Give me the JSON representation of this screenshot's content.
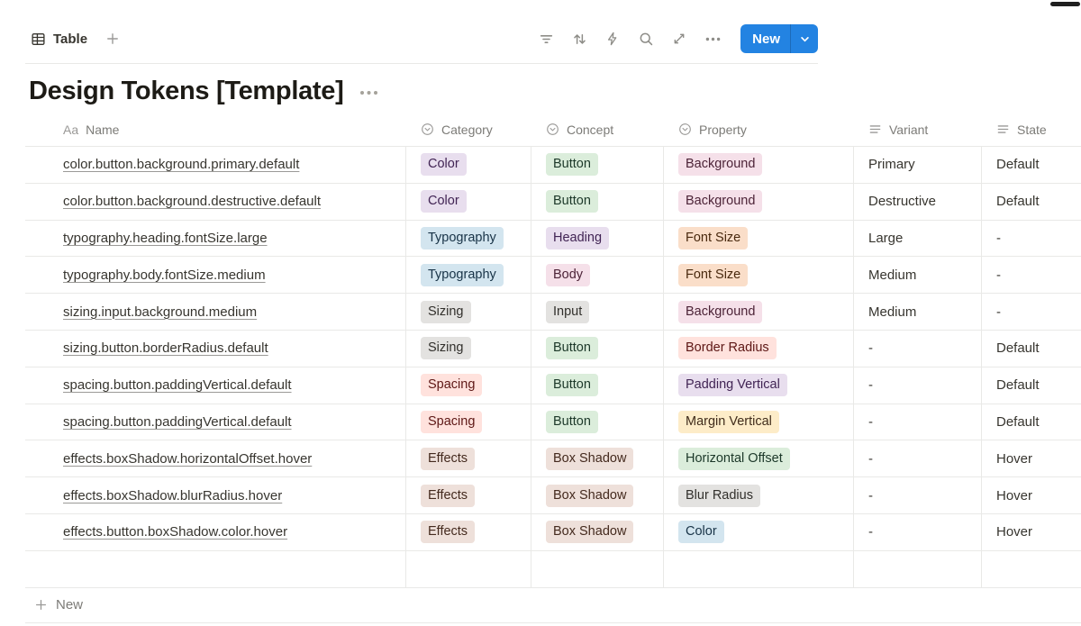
{
  "colors": {
    "accent_blue": "#2383E2",
    "grid_line": "#E9E9E7",
    "text_primary": "#37352F",
    "text_secondary": "#7C7B77"
  },
  "toolbar": {
    "view_tab": "Table",
    "actions": [
      "filter",
      "sort",
      "automation",
      "search",
      "expand",
      "more"
    ],
    "new_label": "New"
  },
  "page": {
    "title": "Design Tokens [Template]"
  },
  "table": {
    "new_row_label": "New",
    "columns": [
      {
        "label": "Name",
        "type": "title"
      },
      {
        "label": "Category",
        "type": "select"
      },
      {
        "label": "Concept",
        "type": "select"
      },
      {
        "label": "Property",
        "type": "select"
      },
      {
        "label": "Variant",
        "type": "text"
      },
      {
        "label": "State",
        "type": "text"
      }
    ],
    "palette": {
      "purple": {
        "bg": "#E8DEEE",
        "text": "#412454"
      },
      "blue": {
        "bg": "#D3E5EF",
        "text": "#183347"
      },
      "gray": {
        "bg": "#E3E2E0",
        "text": "#32302C"
      },
      "red": {
        "bg": "#FFE2DD",
        "text": "#5D1715"
      },
      "brown": {
        "bg": "#EEE0DA",
        "text": "#442A1E"
      },
      "green": {
        "bg": "#DBEDDB",
        "text": "#1C3829"
      },
      "pink": {
        "bg": "#F5E0E9",
        "text": "#4C2337"
      },
      "orange": {
        "bg": "#FADEC9",
        "text": "#49290E"
      },
      "yellow": {
        "bg": "#FDECC8",
        "text": "#402C1B"
      }
    },
    "rows": [
      {
        "name": "color.button.background.primary.default",
        "category": {
          "label": "Color",
          "color": "purple"
        },
        "concept": {
          "label": "Button",
          "color": "green"
        },
        "property": {
          "label": "Background",
          "color": "pink"
        },
        "variant": "Primary",
        "state": "Default"
      },
      {
        "name": "color.button.background.destructive.default",
        "category": {
          "label": "Color",
          "color": "purple"
        },
        "concept": {
          "label": "Button",
          "color": "green"
        },
        "property": {
          "label": "Background",
          "color": "pink"
        },
        "variant": "Destructive",
        "state": "Default"
      },
      {
        "name": "typography.heading.fontSize.large",
        "category": {
          "label": "Typography",
          "color": "blue"
        },
        "concept": {
          "label": "Heading",
          "color": "purple"
        },
        "property": {
          "label": "Font Size",
          "color": "orange"
        },
        "variant": "Large",
        "state": "-"
      },
      {
        "name": "typography.body.fontSize.medium",
        "category": {
          "label": "Typography",
          "color": "blue"
        },
        "concept": {
          "label": "Body",
          "color": "pink"
        },
        "property": {
          "label": "Font Size",
          "color": "orange"
        },
        "variant": "Medium",
        "state": "-"
      },
      {
        "name": "sizing.input.background.medium",
        "category": {
          "label": "Sizing",
          "color": "gray"
        },
        "concept": {
          "label": "Input",
          "color": "gray"
        },
        "property": {
          "label": "Background",
          "color": "pink"
        },
        "variant": "Medium",
        "state": "-"
      },
      {
        "name": "sizing.button.borderRadius.default",
        "category": {
          "label": "Sizing",
          "color": "gray"
        },
        "concept": {
          "label": "Button",
          "color": "green"
        },
        "property": {
          "label": "Border Radius",
          "color": "red"
        },
        "variant": "-",
        "state": "Default"
      },
      {
        "name": "spacing.button.paddingVertical.default",
        "category": {
          "label": "Spacing",
          "color": "red"
        },
        "concept": {
          "label": "Button",
          "color": "green"
        },
        "property": {
          "label": "Padding Vertical",
          "color": "purple"
        },
        "variant": "-",
        "state": "Default"
      },
      {
        "name": "spacing.button.paddingVertical.default",
        "category": {
          "label": "Spacing",
          "color": "red"
        },
        "concept": {
          "label": "Button",
          "color": "green"
        },
        "property": {
          "label": "Margin Vertical",
          "color": "yellow"
        },
        "variant": "-",
        "state": "Default"
      },
      {
        "name": "effects.boxShadow.horizontalOffset.hover",
        "category": {
          "label": "Effects",
          "color": "brown"
        },
        "concept": {
          "label": "Box Shadow",
          "color": "brown"
        },
        "property": {
          "label": "Horizontal Offset",
          "color": "green"
        },
        "variant": "-",
        "state": "Hover"
      },
      {
        "name": "effects.boxShadow.blurRadius.hover",
        "category": {
          "label": "Effects",
          "color": "brown"
        },
        "concept": {
          "label": "Box Shadow",
          "color": "brown"
        },
        "property": {
          "label": "Blur Radius",
          "color": "gray"
        },
        "variant": "-",
        "state": "Hover"
      },
      {
        "name": "effects.button.boxShadow.color.hover",
        "category": {
          "label": "Effects",
          "color": "brown"
        },
        "concept": {
          "label": "Box Shadow",
          "color": "brown"
        },
        "property": {
          "label": "Color",
          "color": "blue"
        },
        "variant": "-",
        "state": "Hover"
      }
    ]
  }
}
